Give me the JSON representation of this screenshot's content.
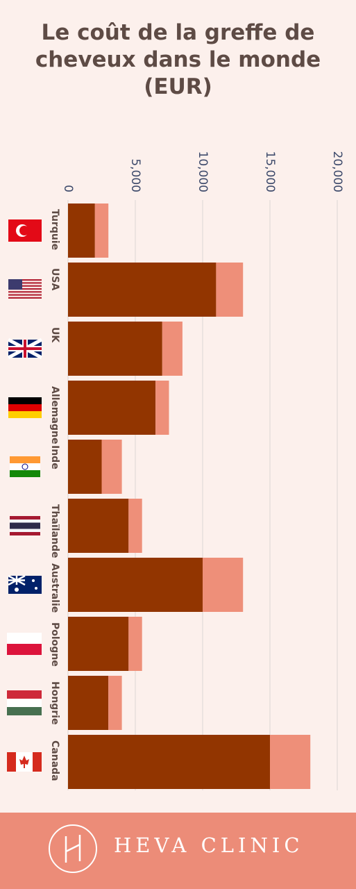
{
  "chart_data": {
    "type": "bar",
    "orientation": "horizontal",
    "stacked": true,
    "title": "Le coût de la greffe de cheveux dans le monde (EUR)",
    "categories": [
      "Turquie",
      "USA",
      "UK",
      "Allemagne",
      "Inde",
      "Thaïlande",
      "Australie",
      "Pologne",
      "Hongrie",
      "Canada"
    ],
    "series": [
      {
        "color": "#923500",
        "values": [
          2000,
          11000,
          7000,
          6500,
          2500,
          4500,
          10000,
          4500,
          3000,
          15000
        ]
      },
      {
        "color": "#ee8f79",
        "values": [
          1000,
          2000,
          1500,
          1000,
          1500,
          1000,
          3000,
          1000,
          1000,
          3000
        ]
      }
    ],
    "xlim": [
      0,
      20000
    ],
    "xticks": [
      0,
      {
        "value": 5000,
        "label": "5,000"
      },
      {
        "value": 10000,
        "label": "10,000"
      },
      {
        "value": 15000,
        "label": "15,000"
      },
      {
        "value": 20000,
        "label": "20,000"
      }
    ],
    "grid": true
  },
  "footer": {
    "brand": "HEVA CLINIC"
  }
}
